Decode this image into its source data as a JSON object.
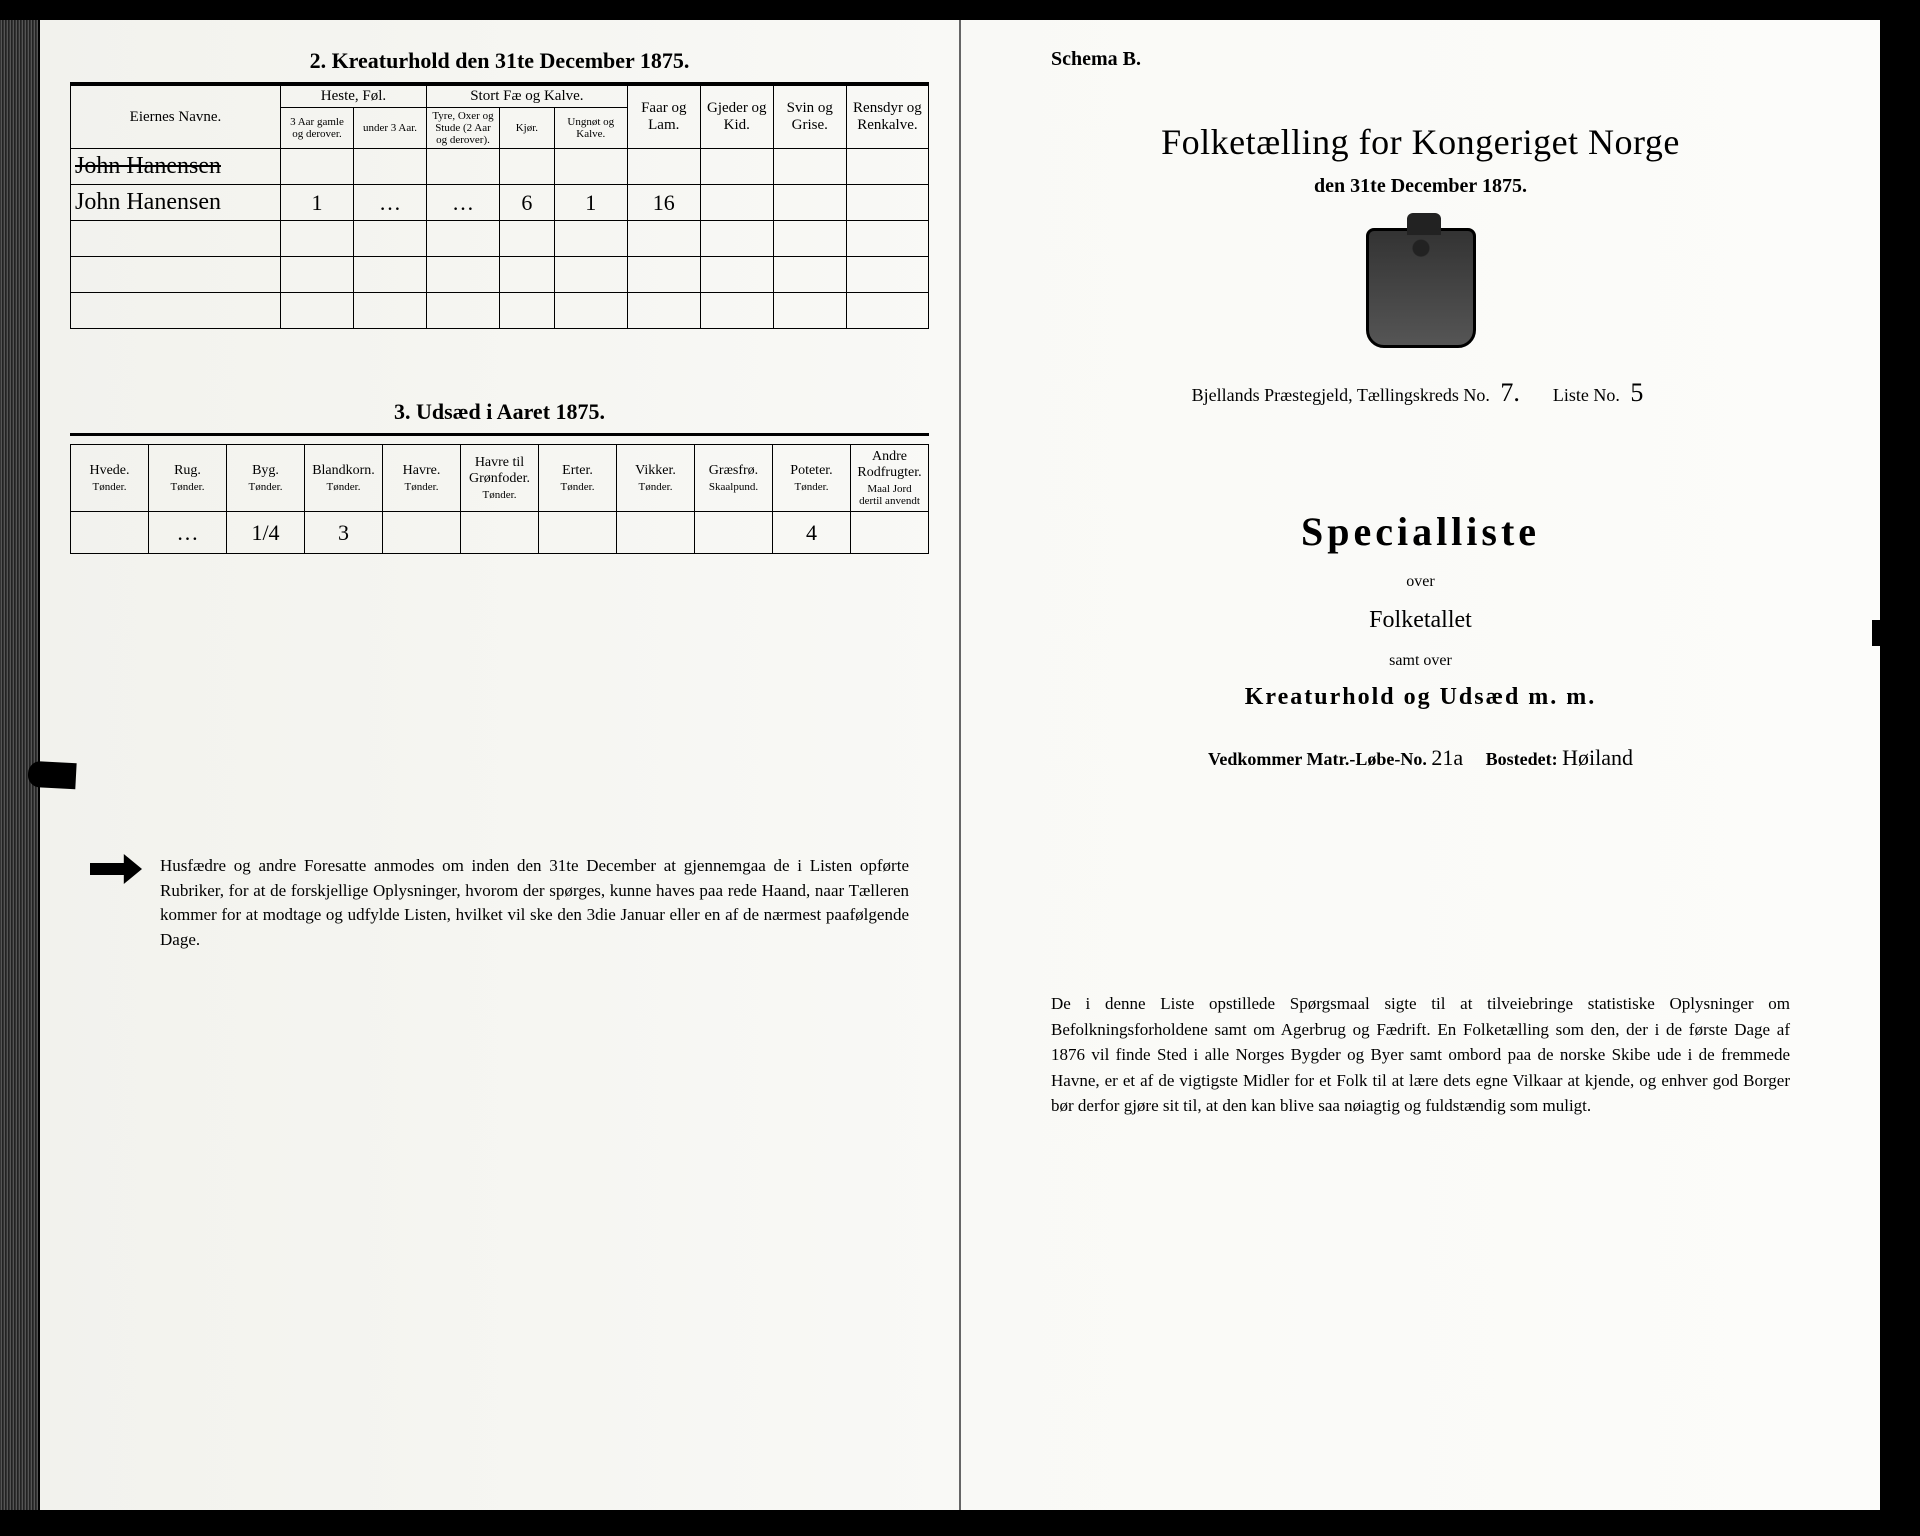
{
  "left": {
    "section2_title": "2. Kreaturhold den 31te December 1875.",
    "table1": {
      "columns": {
        "name": "Eiernes Navne.",
        "horse_group": "Heste, Føl.",
        "horse_old": "3 Aar gamle og derover.",
        "horse_young": "under 3 Aar.",
        "cattle_group": "Stort Fæ og Kalve.",
        "cattle_bull": "Tyre, Oxer og Stude (2 Aar og derover).",
        "cattle_cow": "Kjør.",
        "cattle_calf": "Ungnøt og Kalve.",
        "sheep": "Faar og Lam.",
        "goat": "Gjeder og Kid.",
        "pig": "Svin og Grise.",
        "reindeer": "Rensdyr og Renkalve."
      },
      "rows": [
        {
          "name": "John Hanensen",
          "struck": true,
          "horse_old": "",
          "horse_young": "",
          "bull": "",
          "cow": "",
          "calf": "",
          "sheep": "",
          "goat": "",
          "pig": "",
          "reindeer": ""
        },
        {
          "name": "John Hanensen",
          "struck": false,
          "horse_old": "1",
          "horse_young": "…",
          "bull": "…",
          "cow": "6",
          "calf": "1",
          "sheep": "16",
          "goat": "",
          "pig": "",
          "reindeer": ""
        },
        {
          "name": "",
          "struck": false,
          "horse_old": "",
          "horse_young": "",
          "bull": "",
          "cow": "",
          "calf": "",
          "sheep": "",
          "goat": "",
          "pig": "",
          "reindeer": ""
        },
        {
          "name": "",
          "struck": false,
          "horse_old": "",
          "horse_young": "",
          "bull": "",
          "cow": "",
          "calf": "",
          "sheep": "",
          "goat": "",
          "pig": "",
          "reindeer": ""
        },
        {
          "name": "",
          "struck": false,
          "horse_old": "",
          "horse_young": "",
          "bull": "",
          "cow": "",
          "calf": "",
          "sheep": "",
          "goat": "",
          "pig": "",
          "reindeer": ""
        }
      ]
    },
    "section3_title": "3. Udsæd i Aaret 1875.",
    "table2": {
      "unit": "Tønder.",
      "columns": [
        "Hvede.",
        "Rug.",
        "Byg.",
        "Blandkorn.",
        "Havre.",
        "Havre til Grønfoder.",
        "Erter.",
        "Vikker.",
        "Græsfrø.",
        "Poteter.",
        "Andre Rodfrugter."
      ],
      "col_units": [
        "Tønder.",
        "Tønder.",
        "Tønder.",
        "Tønder.",
        "Tønder.",
        "Tønder.",
        "Tønder.",
        "Tønder.",
        "Skaalpund.",
        "Tønder.",
        "Maal Jord dertil anvendt"
      ],
      "row": [
        "",
        "…",
        "1/4",
        "3",
        "",
        "",
        "",
        "",
        "",
        "4",
        ""
      ]
    },
    "footnote": "Husfædre og andre Foresatte anmodes om inden den 31te December at gjennemgaa de i Listen opførte Rubriker, for at de forskjellige Oplysninger, hvorom der spørges, kunne haves paa rede Haand, naar Tælleren kommer for at modtage og udfylde Listen, hvilket vil ske den 3die Januar eller en af de nærmest paafølgende Dage."
  },
  "right": {
    "schema": "Schema B.",
    "title": "Folketælling for Kongeriget Norge",
    "date": "den 31te December 1875.",
    "district_prefix": "Bjellands Præstegjeld, Tællingskreds No.",
    "district_no": "7.",
    "list_label": "Liste No.",
    "list_no": "5",
    "special": "Specialliste",
    "over": "over",
    "folketallet": "Folketallet",
    "samt": "samt over",
    "kreatur": "Kreaturhold og Udsæd m. m.",
    "matr_label": "Vedkommer Matr.-Løbe-No.",
    "matr_no": "21a",
    "bosted_label": "Bostedet:",
    "bosted": "Høiland",
    "footnote": "De i denne Liste opstillede Spørgsmaal sigte til at tilveiebringe statistiske Oplysninger om Befolkningsforholdene samt om Agerbrug og Fædrift. En Folketælling som den, der i de første Dage af 1876 vil finde Sted i alle Norges Bygder og Byer samt ombord paa de norske Skibe ude i de fremmede Havne, er et af de vigtigste Midler for et Folk til at lære dets egne Vilkaar at kjende, og enhver god Borger bør derfor gjøre sit til, at den kan blive saa nøiagtig og fuldstændig som muligt."
  },
  "colors": {
    "paper": "#f9f9f6",
    "ink": "#000000",
    "edge": "#333333"
  }
}
